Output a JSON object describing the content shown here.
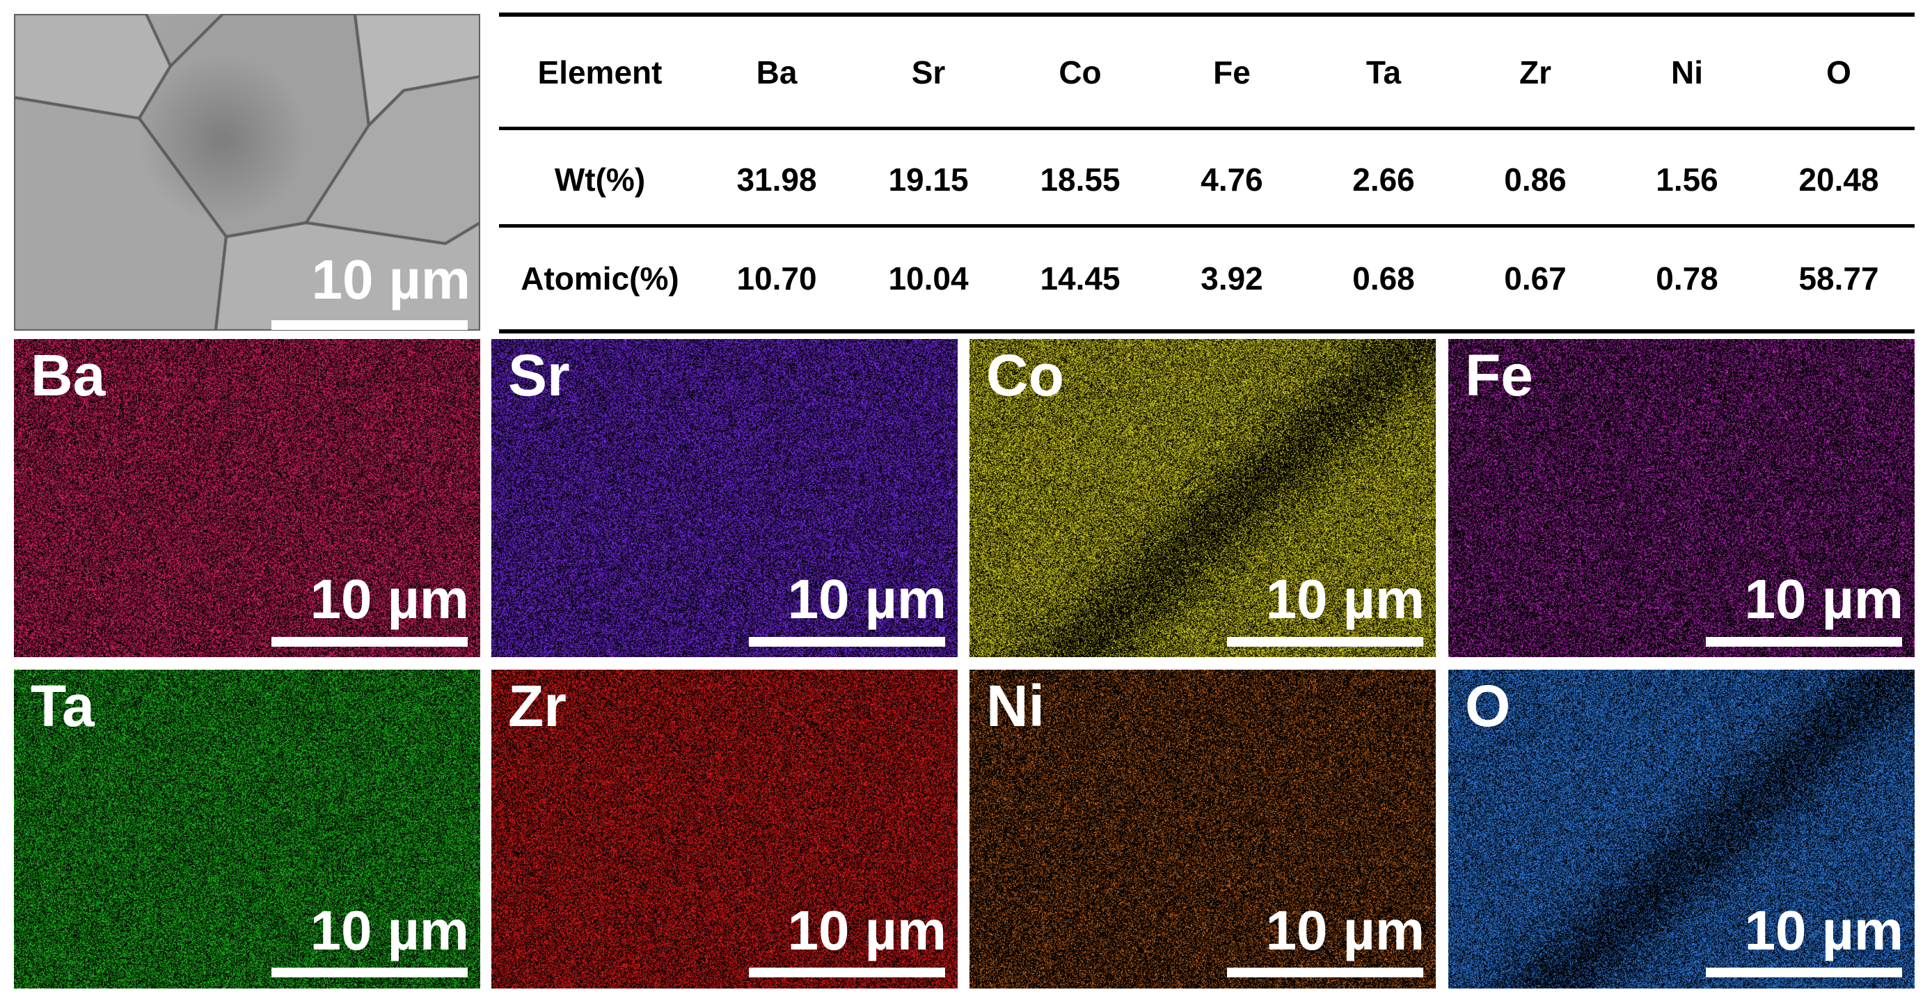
{
  "sem_image": {
    "scale_bar": "10 µm"
  },
  "table": {
    "header": [
      "Element",
      "Ba",
      "Sr",
      "Co",
      "Fe",
      "Ta",
      "Zr",
      "Ni",
      "O"
    ],
    "rows": [
      [
        "Wt(%)",
        "31.98",
        "19.15",
        "18.55",
        "4.76",
        "2.66",
        "0.86",
        "1.56",
        "20.48"
      ],
      [
        "Atomic(%)",
        "10.70",
        "10.04",
        "14.45",
        "3.92",
        "0.68",
        "0.67",
        "0.78",
        "58.77"
      ]
    ]
  },
  "maps": [
    {
      "label": "Ba",
      "scale_bar": "10 µm",
      "color": "#e8246e"
    },
    {
      "label": "Sr",
      "scale_bar": "10 µm",
      "color": "#7a2cf2"
    },
    {
      "label": "Co",
      "scale_bar": "10 µm",
      "color": "#d8d21e"
    },
    {
      "label": "Fe",
      "scale_bar": "10 µm",
      "color": "#d22bd8"
    },
    {
      "label": "Ta",
      "scale_bar": "10 µm",
      "color": "#1ec21e"
    },
    {
      "label": "Zr",
      "scale_bar": "10 µm",
      "color": "#ec1c1c"
    },
    {
      "label": "Ni",
      "scale_bar": "10 µm",
      "color": "#e2721c"
    },
    {
      "label": "O",
      "scale_bar": "10 µm",
      "color": "#2e7ee8"
    }
  ]
}
